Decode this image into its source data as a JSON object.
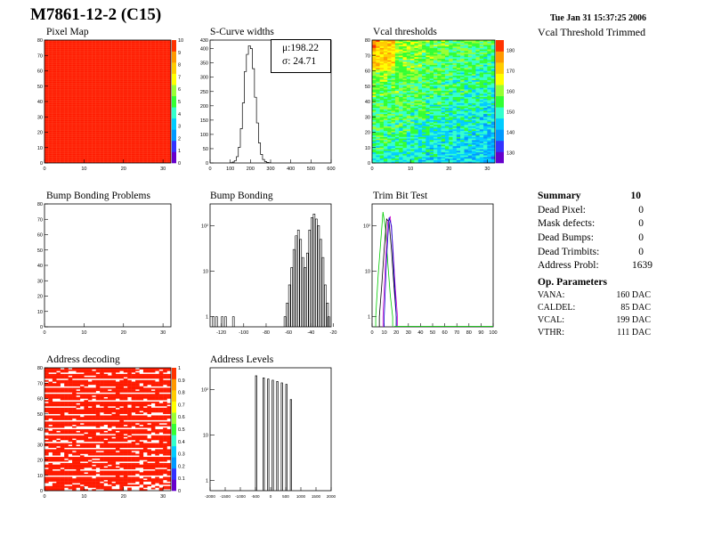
{
  "header": {
    "title": "M7861-12-2 (C15)",
    "timestamp": "Tue Jan 31 15:37:25 2006",
    "right_label": "Vcal Threshold Trimmed"
  },
  "colors": {
    "red": "#ff0000",
    "frame": "#000000"
  },
  "palette": [
    "#6600cc",
    "#3333ff",
    "#0099ff",
    "#00ccff",
    "#33ffcc",
    "#33ff33",
    "#99ff33",
    "#ffff00",
    "#ffcc00",
    "#ff9900",
    "#ff3300"
  ],
  "panels": {
    "pixel_map": {
      "title": "Pixel Map"
    },
    "scurve": {
      "title": "S-Curve widths",
      "mu_label": "μ:198.22",
      "sigma_label": "σ: 24.71"
    },
    "vcal": {
      "title": "Vcal thresholds"
    },
    "bump_problems": {
      "title": "Bump Bonding Problems"
    },
    "bump_bonding": {
      "title": "Bump Bonding"
    },
    "trim_bit": {
      "title": "Trim Bit Test"
    },
    "address_decoding": {
      "title": "Address decoding"
    },
    "address_levels": {
      "title": "Address Levels"
    }
  },
  "summary": {
    "header_label": "Summary",
    "header_value": "10",
    "rows": [
      {
        "label": "Dead Pixel:",
        "value": "0"
      },
      {
        "label": "Mask defects:",
        "value": "0"
      },
      {
        "label": "Dead Bumps:",
        "value": "0"
      },
      {
        "label": "Dead Trimbits:",
        "value": "0"
      },
      {
        "label": "Address Probl:",
        "value": "1639"
      }
    ],
    "op_title": "Op. Parameters",
    "op_rows": [
      {
        "label": "VANA:",
        "value": "160 DAC"
      },
      {
        "label": "CALDEL:",
        "value": "85 DAC"
      },
      {
        "label": "VCAL:",
        "value": "199 DAC"
      },
      {
        "label": "VTHR:",
        "value": "111 DAC"
      }
    ]
  },
  "chart_data": [
    {
      "type": "heatmap",
      "name": "pixel_map",
      "xlim": [
        0,
        32
      ],
      "ylim": [
        0,
        80
      ],
      "xticks": [
        "0",
        "10",
        "20",
        "30"
      ],
      "yticks": [
        "0",
        "10",
        "20",
        "30",
        "40",
        "50",
        "60",
        "70",
        "80"
      ],
      "zlim": [
        0,
        10
      ],
      "zticks": [
        "0",
        "1",
        "2",
        "3",
        "4",
        "5",
        "6",
        "7",
        "8",
        "9",
        "10"
      ],
      "uniform_value": 10
    },
    {
      "type": "bar",
      "name": "scurve_widths",
      "xlim": [
        0,
        600
      ],
      "ylim": [
        0,
        430
      ],
      "xticks": [
        "0",
        "100",
        "200",
        "300",
        "400",
        "500",
        "600"
      ],
      "yticks": [
        "0",
        "50",
        "100",
        "150",
        "200",
        "250",
        "300",
        "350",
        "400",
        "430"
      ],
      "x": [
        100,
        110,
        120,
        130,
        140,
        150,
        160,
        170,
        180,
        190,
        200,
        210,
        220,
        230,
        240,
        250,
        260,
        270,
        280,
        290
      ],
      "values": [
        1,
        3,
        8,
        22,
        55,
        120,
        210,
        320,
        380,
        410,
        400,
        330,
        230,
        140,
        70,
        30,
        12,
        5,
        2,
        1
      ]
    },
    {
      "type": "heatmap",
      "name": "vcal_thresholds",
      "xlim": [
        0,
        32
      ],
      "ylim": [
        0,
        80
      ],
      "xticks": [
        "0",
        "10",
        "20",
        "30"
      ],
      "yticks": [
        "0",
        "10",
        "20",
        "30",
        "40",
        "50",
        "60",
        "70",
        "80"
      ],
      "zlim": [
        125,
        185
      ],
      "zticks": [
        "130",
        "140",
        "150",
        "160",
        "170",
        "180"
      ],
      "trend": "high values near top-left (~180), decreasing toward bottom-right (~145)"
    },
    {
      "type": "heatmap",
      "name": "bump_bonding_problems",
      "xlim": [
        0,
        32
      ],
      "ylim": [
        0,
        80
      ],
      "xticks": [
        "0",
        "10",
        "20",
        "30"
      ],
      "yticks": [
        "0",
        "10",
        "20",
        "30",
        "40",
        "50",
        "60",
        "70",
        "80"
      ],
      "entries": 0
    },
    {
      "type": "bar",
      "name": "bump_bonding",
      "log_y": true,
      "xlim": [
        -130,
        -22
      ],
      "ylim": [
        0.6,
        300
      ],
      "xticks": [
        "-120",
        "-100",
        "-80",
        "-60",
        "-40",
        "-20"
      ],
      "yticks": [
        "1",
        "10",
        "10²"
      ],
      "x": [
        -128,
        -125,
        -120,
        -117,
        -110,
        -64,
        -62,
        -60,
        -58,
        -56,
        -54,
        -52,
        -50,
        -48,
        -46,
        -44,
        -42,
        -40,
        -38,
        -36,
        -34,
        -32,
        -30,
        -28,
        -26,
        -25
      ],
      "values": [
        1,
        1,
        1,
        1,
        1,
        1,
        2,
        5,
        12,
        30,
        60,
        80,
        50,
        20,
        12,
        25,
        80,
        150,
        180,
        140,
        100,
        50,
        20,
        5,
        2,
        1
      ]
    },
    {
      "type": "line",
      "name": "trim_bit_test",
      "log_y": true,
      "xlim": [
        0,
        100
      ],
      "ylim": [
        0.6,
        300
      ],
      "xticks": [
        "0",
        "10",
        "20",
        "30",
        "40",
        "50",
        "60",
        "70",
        "80",
        "90",
        "100"
      ],
      "yticks": [
        "1",
        "10",
        "10²"
      ],
      "series": [
        {
          "color": "#00cc00",
          "x": [
            3,
            5,
            7,
            9,
            11,
            13,
            15,
            17
          ],
          "values": [
            1,
            8,
            40,
            200,
            90,
            15,
            3,
            1
          ]
        },
        {
          "color": "#000000",
          "x": [
            6,
            8,
            10,
            12,
            14,
            16,
            18,
            20
          ],
          "values": [
            1,
            5,
            30,
            140,
            120,
            30,
            5,
            1
          ]
        },
        {
          "color": "#cc00cc",
          "x": [
            9,
            11,
            13,
            15,
            17,
            19,
            21
          ],
          "values": [
            1,
            15,
            120,
            160,
            40,
            5,
            1
          ]
        },
        {
          "color": "#0000cc",
          "x": [
            10,
            12,
            14,
            16,
            18,
            20
          ],
          "values": [
            1,
            20,
            150,
            100,
            10,
            1
          ]
        }
      ]
    },
    {
      "type": "heatmap",
      "name": "address_decoding",
      "xlim": [
        0,
        32
      ],
      "ylim": [
        0,
        80
      ],
      "xticks": [
        "0",
        "10",
        "20",
        "30"
      ],
      "yticks": [
        "0",
        "10",
        "20",
        "30",
        "40",
        "50",
        "60",
        "70",
        "80"
      ],
      "zlim": [
        0,
        1
      ],
      "zticks": [
        "0",
        "0.1",
        "0.2",
        "0.3",
        "0.4",
        "0.5",
        "0.6",
        "0.7",
        "0.8",
        "0.9",
        "1"
      ],
      "pattern": "red rows (value 1) interleaved with white bands (value 0)"
    },
    {
      "type": "bar",
      "name": "address_levels",
      "log_y": true,
      "xlim": [
        -2000,
        2000
      ],
      "ylim": [
        0.6,
        300
      ],
      "xticks": [
        "-2000",
        "-1500",
        "-1000",
        "-500",
        "0",
        "500",
        "1000",
        "1500",
        "2000"
      ],
      "yticks": [
        "1",
        "10",
        "10²"
      ],
      "x": [
        -500,
        -250,
        -100,
        50,
        200,
        350,
        500,
        650
      ],
      "values": [
        200,
        180,
        170,
        160,
        150,
        140,
        130,
        60
      ]
    }
  ]
}
